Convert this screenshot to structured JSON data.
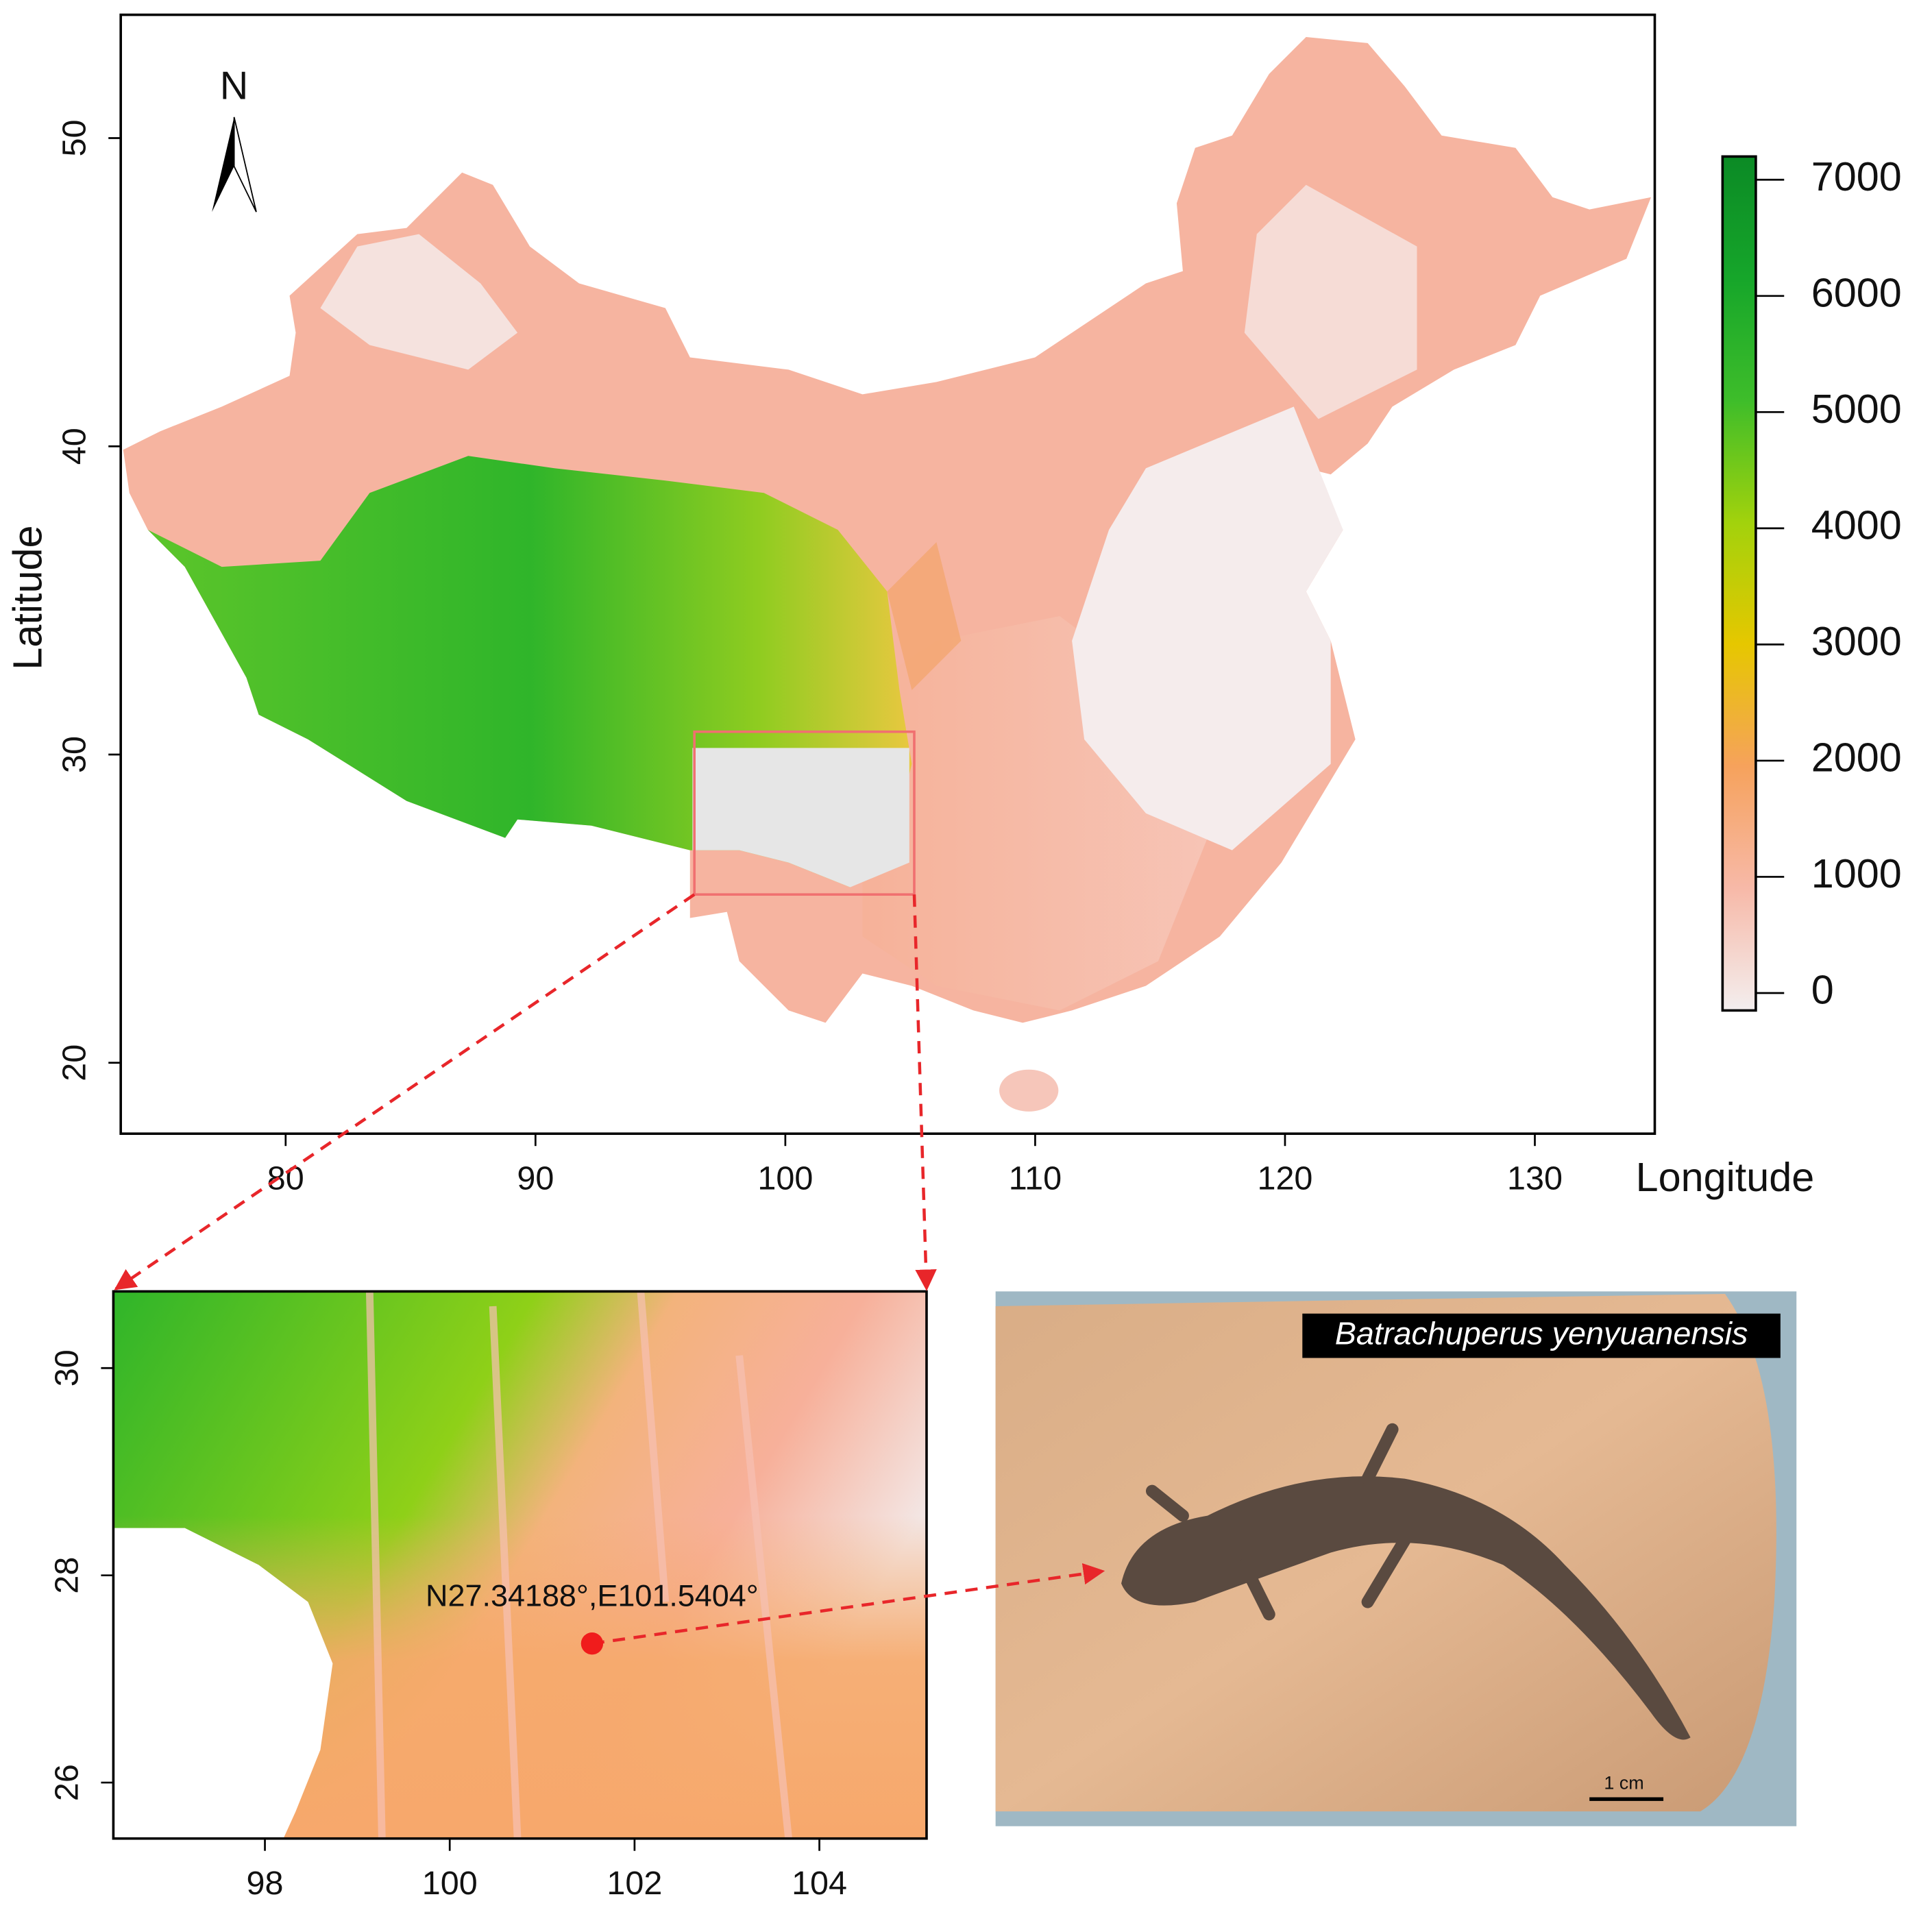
{
  "main_map": {
    "xlabel": "Longitude",
    "ylabel": "Latitude",
    "xlim": [
      73.4,
      134.8
    ],
    "ylim": [
      17.7,
      54.0
    ],
    "xticks": [
      80,
      90,
      100,
      110,
      120,
      130
    ],
    "yticks": [
      20,
      30,
      40,
      50
    ],
    "north": "N"
  },
  "colorbar": {
    "lim": [
      -150,
      7200
    ],
    "ticks": [
      0,
      1000,
      2000,
      3000,
      4000,
      5000,
      6000,
      7000
    ],
    "colors": [
      "#f3eeee",
      "#f7b9a8",
      "#f6a25c",
      "#e6c700",
      "#a2d20c",
      "#3ebd2a",
      "#16a62a",
      "#0b8a25"
    ]
  },
  "inset_map": {
    "xlim": [
      96.36,
      105.16
    ],
    "ylim": [
      25.46,
      30.74
    ],
    "xticks": [
      98,
      100,
      102,
      104
    ],
    "yticks": [
      26,
      28,
      30
    ],
    "site": {
      "lat": 27.34188,
      "lon": 101.5404,
      "label": "N27.34188°,E101.5404°"
    }
  },
  "photo": {
    "species": "Batrachuperus yenyuanensis",
    "scale_bar": "1 cm"
  }
}
